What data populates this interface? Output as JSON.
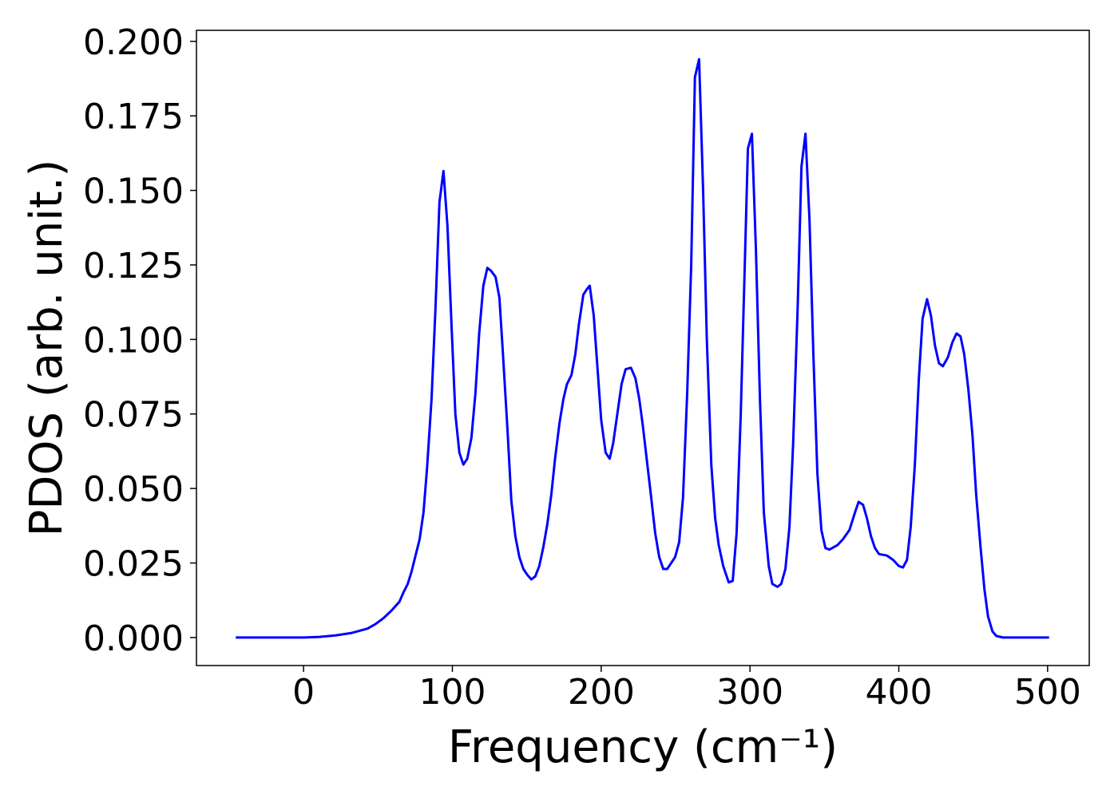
{
  "chart_data": {
    "type": "line",
    "xlabel": "Frequency (cm⁻¹)",
    "ylabel": "PDOS (arb. unit.)",
    "xlim": [
      -72,
      528
    ],
    "ylim": [
      -0.0094,
      0.2037
    ],
    "xticks": [
      0,
      100,
      200,
      300,
      400,
      500
    ],
    "yticks": [
      {
        "value": 0,
        "label": "0.000"
      },
      0.025,
      {
        "value": 0.05,
        "label": "0.050"
      },
      0.075,
      {
        "value": 0.1,
        "label": "0.100"
      },
      0.125,
      {
        "value": 0.15,
        "label": "0.150"
      },
      0.175,
      {
        "value": 0.2,
        "label": "0.200"
      }
    ],
    "grid": false,
    "series": [
      {
        "color": "#0000ff",
        "x": [
          -45.6,
          0,
          10.7,
          21.5,
          32,
          43,
          48.3,
          53.7,
          59,
          64.4,
          67,
          70,
          72.5,
          75,
          78,
          80.6,
          83,
          86,
          88.6,
          91.3,
          94,
          96.7,
          99.4,
          102,
          104.7,
          107.4,
          110,
          112.8,
          115.5,
          118,
          120.8,
          123.5,
          126,
          129,
          131.6,
          134,
          137,
          139.6,
          142.3,
          145,
          147.7,
          150.4,
          153,
          155.7,
          158.4,
          161,
          163.8,
          166.5,
          169,
          172,
          174.6,
          177,
          180,
          182.6,
          185,
          188,
          190.6,
          192.3,
          195,
          200,
          203,
          205.7,
          208,
          213.7,
          216.4,
          220,
          223,
          225.6,
          228,
          233.6,
          236.3,
          239,
          241.7,
          244.4,
          249.7,
          252.4,
          255,
          257.8,
          260.5,
          263,
          265.8,
          268.5,
          271,
          274,
          276.6,
          279,
          282,
          285.7,
          288.4,
          291,
          293.8,
          296.5,
          298.6,
          301.3,
          304,
          306.7,
          309.3,
          312.6,
          315,
          318.5,
          321,
          323.8,
          326.5,
          329,
          332,
          334.6,
          337.3,
          340,
          342.6,
          345.3,
          348,
          350.7,
          353.4,
          358.8,
          362.5,
          366.8,
          370.6,
          373,
          376,
          378.6,
          381.3,
          384,
          386.7,
          392,
          396.3,
          400,
          402.8,
          405.5,
          408,
          410.8,
          413.5,
          416,
          419,
          421.6,
          424.3,
          427,
          429.6,
          433,
          436,
          438.8,
          441.5,
          444,
          446.8,
          449.5,
          452,
          455,
          457.6,
          460,
          463,
          465.6,
          470,
          501
        ],
        "values": [
          0,
          0,
          0.0002,
          0.0007,
          0.0015,
          0.003,
          0.0045,
          0.0065,
          0.009,
          0.012,
          0.015,
          0.018,
          0.022,
          0.027,
          0.033,
          0.042,
          0.057,
          0.08,
          0.11,
          0.146,
          0.1565,
          0.138,
          0.105,
          0.075,
          0.062,
          0.058,
          0.06,
          0.067,
          0.082,
          0.102,
          0.118,
          0.124,
          0.123,
          0.121,
          0.114,
          0.095,
          0.07,
          0.046,
          0.034,
          0.027,
          0.023,
          0.021,
          0.0195,
          0.0205,
          0.024,
          0.03,
          0.038,
          0.048,
          0.06,
          0.072,
          0.08,
          0.085,
          0.088,
          0.095,
          0.105,
          0.115,
          0.117,
          0.118,
          0.108,
          0.073,
          0.062,
          0.06,
          0.065,
          0.085,
          0.09,
          0.0905,
          0.087,
          0.08,
          0.071,
          0.047,
          0.035,
          0.027,
          0.023,
          0.023,
          0.027,
          0.032,
          0.047,
          0.082,
          0.125,
          0.188,
          0.194,
          0.15,
          0.1,
          0.058,
          0.04,
          0.031,
          0.024,
          0.0185,
          0.019,
          0.035,
          0.075,
          0.125,
          0.164,
          0.169,
          0.13,
          0.08,
          0.042,
          0.024,
          0.018,
          0.017,
          0.018,
          0.023,
          0.037,
          0.065,
          0.11,
          0.158,
          0.169,
          0.14,
          0.095,
          0.055,
          0.036,
          0.03,
          0.0295,
          0.031,
          0.033,
          0.036,
          0.042,
          0.0455,
          0.0445,
          0.04,
          0.034,
          0.03,
          0.028,
          0.0275,
          0.026,
          0.024,
          0.0235,
          0.026,
          0.037,
          0.058,
          0.087,
          0.107,
          0.1135,
          0.108,
          0.098,
          0.092,
          0.091,
          0.094,
          0.099,
          0.102,
          0.101,
          0.095,
          0.083,
          0.068,
          0.048,
          0.03,
          0.016,
          0.007,
          0.002,
          0.0005,
          0,
          0
        ]
      }
    ]
  }
}
